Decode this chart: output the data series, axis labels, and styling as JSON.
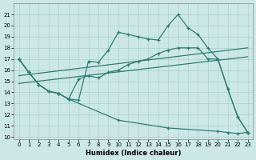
{
  "xlabel": "Humidex (Indice chaleur)",
  "background_color": "#cce8e6",
  "grid_color": "#aacfcd",
  "line_color": "#2d7d72",
  "xlim": [
    -0.5,
    23.5
  ],
  "ylim": [
    9.8,
    22.0
  ],
  "yticks": [
    10,
    11,
    12,
    13,
    14,
    15,
    16,
    17,
    18,
    19,
    20,
    21
  ],
  "xticks": [
    0,
    1,
    2,
    3,
    4,
    5,
    6,
    7,
    8,
    9,
    10,
    11,
    12,
    13,
    14,
    15,
    16,
    17,
    18,
    19,
    20,
    21,
    22,
    23
  ],
  "line_top_x": [
    0,
    1,
    2,
    3,
    4,
    5,
    6,
    7,
    8,
    9,
    10,
    11,
    12,
    13,
    14,
    15,
    16,
    17,
    18,
    19,
    20,
    21,
    22,
    23
  ],
  "line_top_y": [
    17.0,
    15.8,
    14.7,
    14.1,
    13.9,
    13.4,
    13.3,
    16.8,
    16.7,
    17.8,
    19.4,
    19.2,
    19.0,
    18.8,
    18.7,
    20.0,
    21.0,
    19.8,
    19.2,
    18.0,
    17.0,
    14.3,
    11.8,
    10.4
  ],
  "line_mid_x": [
    0,
    1,
    2,
    3,
    4,
    5,
    6,
    7,
    8,
    9,
    10,
    11,
    12,
    13,
    14,
    15,
    16,
    17,
    18,
    19,
    20,
    21,
    22,
    23
  ],
  "line_mid_y": [
    17.0,
    15.8,
    14.7,
    14.1,
    13.9,
    13.4,
    15.2,
    15.5,
    15.3,
    15.8,
    16.0,
    16.5,
    16.8,
    17.0,
    17.5,
    17.8,
    18.0,
    18.0,
    18.0,
    17.0,
    17.0,
    14.3,
    11.8,
    10.4
  ],
  "line_trend1_x": [
    0,
    23
  ],
  "line_trend1_y": [
    15.5,
    18.0
  ],
  "line_trend2_x": [
    0,
    23
  ],
  "line_trend2_y": [
    14.8,
    17.2
  ],
  "line_bot_x": [
    0,
    1,
    2,
    3,
    4,
    5,
    10,
    15,
    20,
    21,
    22,
    23
  ],
  "line_bot_y": [
    17.0,
    15.8,
    14.7,
    14.1,
    13.9,
    13.4,
    11.5,
    10.8,
    10.5,
    10.4,
    10.3,
    10.4
  ]
}
